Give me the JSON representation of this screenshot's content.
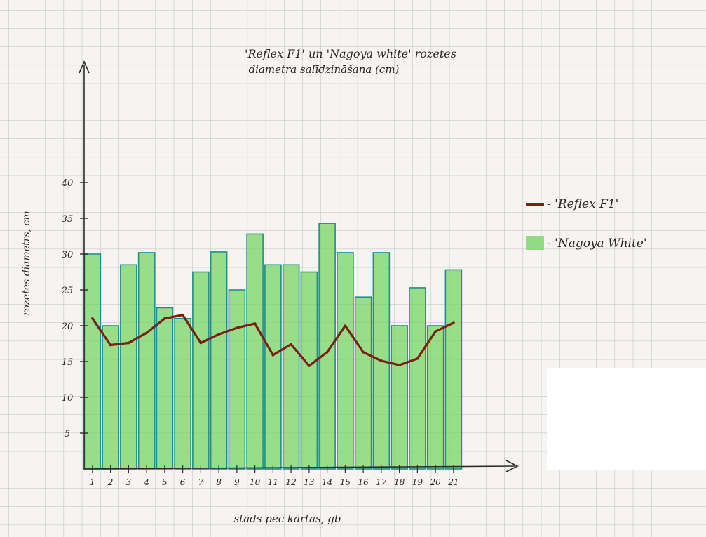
{
  "chart_data": {
    "type": "bar",
    "title_line1": "'Reflex F1' un 'Nagoya white' rozetes",
    "title_line2": "diametra salīdzināšana (cm)",
    "ylabel": "rozetes diametrs, cm",
    "xlabel": "stāds pēc kārtas, gb",
    "ylim": [
      0,
      40
    ],
    "y_ticks": [
      5,
      10,
      15,
      20,
      25,
      30,
      35,
      40
    ],
    "categories": [
      "1",
      "2",
      "3",
      "4",
      "5",
      "6",
      "7",
      "8",
      "9",
      "10",
      "11",
      "12",
      "13",
      "14",
      "15",
      "16",
      "17",
      "18",
      "19",
      "20",
      "21"
    ],
    "series": [
      {
        "name": "'Nagoya White'",
        "kind": "bar",
        "color": "#7ed66a",
        "values": [
          30,
          20,
          28.5,
          30.2,
          22.5,
          21,
          27.5,
          30.3,
          25,
          32.8,
          28.5,
          28.5,
          27.5,
          34.3,
          30.2,
          24,
          30.2,
          20,
          25.3,
          20,
          27.8
        ]
      },
      {
        "name": "'Reflex F1'",
        "kind": "line",
        "color": "#7a1f14",
        "values": [
          21,
          17.3,
          17.6,
          19,
          21,
          21.5,
          17.6,
          18.8,
          19.7,
          20.3,
          15.9,
          17.4,
          14.4,
          16.3,
          20,
          16.3,
          15.1,
          14.5,
          15.4,
          19.2,
          20.4
        ]
      }
    ],
    "legend": {
      "position": "right",
      "line_label": "- 'Reflex F1'",
      "bar_label": "- 'Nagoya White'"
    }
  }
}
